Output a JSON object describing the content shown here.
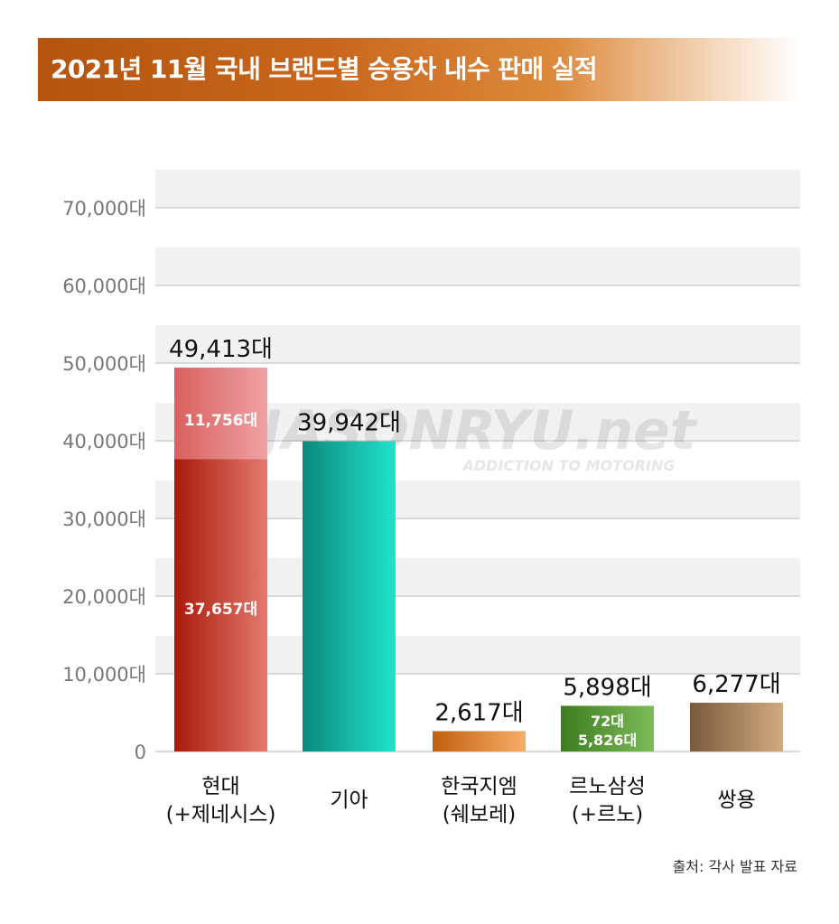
{
  "title": "2021년 11월 국내 브랜드별 승용차 내수 판매 실적",
  "source": "출처: 각사 발표 자료",
  "watermark": {
    "main": "JASONRYU.net",
    "sub": "ADDICTION TO MOTORING"
  },
  "colors": {
    "banner_start": "#b5540f",
    "grid": "#cfcfcf",
    "band": "#f1f1f1",
    "axis_text": "#777777"
  },
  "chart_data": {
    "type": "bar",
    "stacked": true,
    "categories": [
      [
        "현대",
        "(+제네시스)"
      ],
      [
        "기아"
      ],
      [
        "한국지엠",
        "(쉐보레)"
      ],
      [
        "르노삼성",
        "(+르노)"
      ],
      [
        "쌍용"
      ]
    ],
    "y_ticks": [
      "0",
      "10,000대",
      "20,000대",
      "30,000대",
      "40,000대",
      "50,000대",
      "60,000대",
      "70,000대"
    ],
    "ylim": [
      0,
      70000
    ],
    "grid": true,
    "bars": [
      {
        "total": 49413,
        "total_label": "49,413대",
        "segments": [
          {
            "value": 37657,
            "label": "37,657대",
            "color_from": "#a91a0a",
            "color_to": "#e37a6e"
          },
          {
            "value": 11756,
            "label": "11,756대",
            "color_from": "#d9605e",
            "color_to": "#eea1a3"
          }
        ]
      },
      {
        "total": 39942,
        "total_label": "39,942대",
        "segments": [
          {
            "value": 39942,
            "label": "",
            "color_from": "#0a8a7c",
            "color_to": "#20e3cc"
          }
        ]
      },
      {
        "total": 2617,
        "total_label": "2,617대",
        "segments": [
          {
            "value": 2617,
            "label": "",
            "color_from": "#bf600f",
            "color_to": "#f6ae68"
          }
        ]
      },
      {
        "total": 5898,
        "total_label": "5,898대",
        "segments": [
          {
            "value": 5826,
            "label": "5,826대",
            "color_from": "#3e7d1f",
            "color_to": "#7dba59"
          },
          {
            "value": 72,
            "label": "72대",
            "color_from": "#4d8e2c",
            "color_to": "#9acb7a"
          }
        ]
      },
      {
        "total": 6277,
        "total_label": "6,277대",
        "segments": [
          {
            "value": 6277,
            "label": "",
            "color_from": "#7a5a3e",
            "color_to": "#d0ab80"
          }
        ]
      }
    ]
  }
}
